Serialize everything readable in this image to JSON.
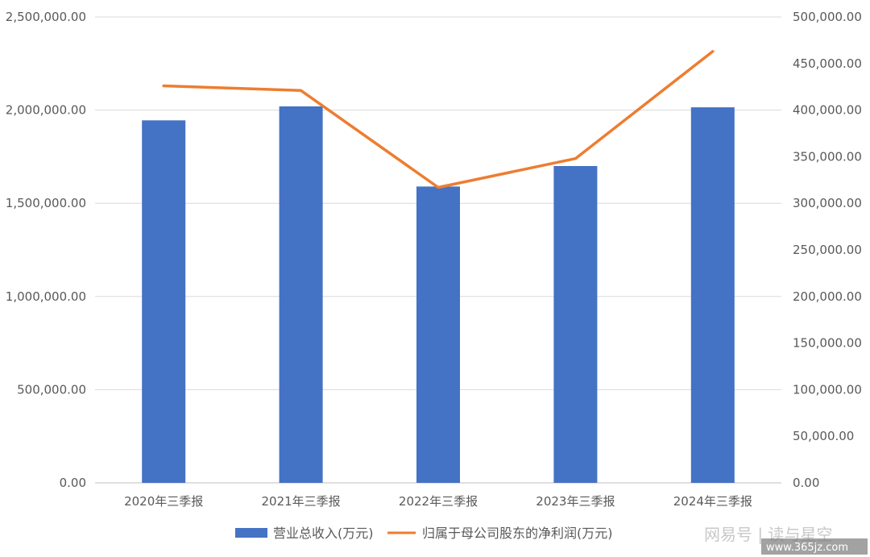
{
  "chart_data": {
    "type": "bar",
    "categories": [
      "2020年三季报",
      "2021年三季报",
      "2022年三季报",
      "2023年三季报",
      "2024年三季报"
    ],
    "series": [
      {
        "name": "营业总收入(万元)",
        "type": "bar",
        "axis": "left",
        "color": "#4472C4",
        "values": [
          1945000,
          2020000,
          1590000,
          1700000,
          2015000
        ]
      },
      {
        "name": "归属于母公司股东的净利润(万元)",
        "type": "line",
        "axis": "right",
        "color": "#ED7D31",
        "values": [
          426000,
          421000,
          317000,
          348000,
          463000
        ]
      }
    ],
    "y_left": {
      "ylim": [
        0,
        2500000
      ],
      "ticks": [
        0,
        500000,
        1000000,
        1500000,
        2000000,
        2500000
      ],
      "tick_labels": [
        "0.00",
        "500,000.00",
        "1,000,000.00",
        "1,500,000.00",
        "2,000,000.00",
        "2,500,000.00"
      ]
    },
    "y_right": {
      "ylim": [
        0,
        500000
      ],
      "ticks": [
        0,
        50000,
        100000,
        150000,
        200000,
        250000,
        300000,
        350000,
        400000,
        450000,
        500000
      ],
      "tick_labels": [
        "0.00",
        "50,000.00",
        "100,000.00",
        "150,000.00",
        "200,000.00",
        "250,000.00",
        "300,000.00",
        "350,000.00",
        "400,000.00",
        "450,000.00",
        "500,000.00"
      ]
    },
    "grid": true,
    "legend_position": "bottom"
  },
  "watermark": {
    "text": "网易号 | 读与星空",
    "url": "www.365jz.com"
  }
}
